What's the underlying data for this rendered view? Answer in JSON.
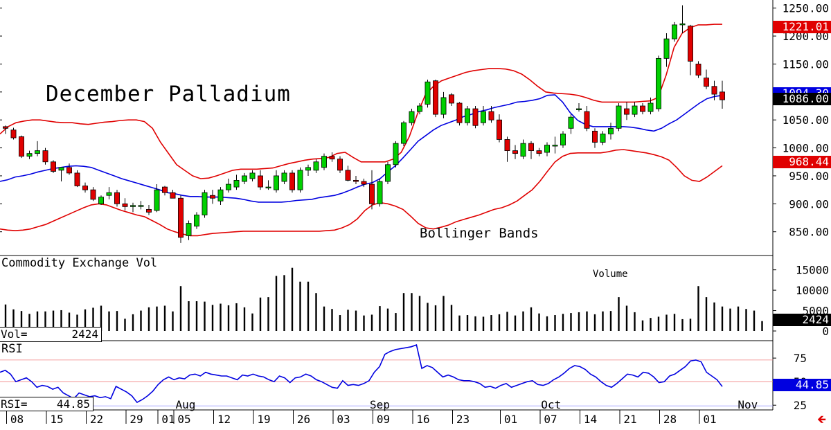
{
  "colors": {
    "up": "#00d000",
    "down": "#e00000",
    "upper_band": "#e00000",
    "lower_band": "#e00000",
    "middle_band": "#0000e0",
    "rsi_line": "#0000e0",
    "volume": "#000000",
    "last_price_box": "#000000",
    "upper_box": "#e00000",
    "lower_box": "#e00000",
    "middle_box": "#0000e0",
    "rsi_box": "#0000e0",
    "volume_box": "#000000",
    "arrow": "#e00000"
  },
  "chart_data": [
    {
      "type": "candlestick",
      "title": "December Palladium",
      "annotation": "Bollinger Bands",
      "ylim": [
        810,
        1262
      ],
      "yticks": [
        "1250.00",
        "1200.00",
        "1150.00",
        "1100.00",
        "1050.00",
        "1000.00",
        "950.00",
        "900.00",
        "850.00"
      ],
      "last_price": "1086.00",
      "upper_band_value": "1221.01",
      "middle_band_value": "1094.30",
      "lower_band_value": "968.44",
      "ohlc": [
        [
          1038,
          1040,
          1025,
          1035
        ],
        [
          1032,
          1036,
          1015,
          1018
        ],
        [
          1020,
          1022,
          982,
          985
        ],
        [
          985,
          995,
          980,
          990
        ],
        [
          990,
          1012,
          985,
          995
        ],
        [
          995,
          1000,
          970,
          975
        ],
        [
          975,
          978,
          955,
          958
        ],
        [
          960,
          965,
          940,
          965
        ],
        [
          965,
          972,
          952,
          955
        ],
        [
          955,
          960,
          930,
          932
        ],
        [
          932,
          938,
          920,
          925
        ],
        [
          925,
          930,
          905,
          908
        ],
        [
          900,
          915,
          898,
          912
        ],
        [
          915,
          930,
          908,
          920
        ],
        [
          920,
          925,
          895,
          900
        ],
        [
          900,
          910,
          888,
          895
        ],
        [
          895,
          902,
          885,
          897
        ],
        [
          897,
          905,
          890,
          897
        ],
        [
          890,
          898,
          880,
          885
        ],
        [
          888,
          935,
          885,
          925
        ],
        [
          930,
          932,
          915,
          920
        ],
        [
          920,
          925,
          910,
          910
        ],
        [
          910,
          915,
          830,
          840
        ],
        [
          843,
          870,
          835,
          865
        ],
        [
          860,
          885,
          855,
          880
        ],
        [
          880,
          925,
          875,
          920
        ],
        [
          915,
          925,
          900,
          910
        ],
        [
          905,
          930,
          898,
          925
        ],
        [
          925,
          945,
          920,
          935
        ],
        [
          930,
          952,
          925,
          942
        ],
        [
          940,
          955,
          935,
          950
        ],
        [
          945,
          960,
          940,
          955
        ],
        [
          950,
          960,
          925,
          930
        ],
        [
          930,
          942,
          925,
          930
        ],
        [
          925,
          960,
          920,
          950
        ],
        [
          940,
          960,
          935,
          955
        ],
        [
          955,
          960,
          920,
          925
        ],
        [
          925,
          965,
          920,
          960
        ],
        [
          960,
          970,
          950,
          965
        ],
        [
          960,
          980,
          955,
          975
        ],
        [
          965,
          990,
          960,
          985
        ],
        [
          985,
          992,
          975,
          980
        ],
        [
          980,
          985,
          955,
          960
        ],
        [
          960,
          968,
          940,
          942
        ],
        [
          942,
          950,
          935,
          940
        ],
        [
          940,
          945,
          930,
          935
        ],
        [
          935,
          960,
          890,
          900
        ],
        [
          900,
          945,
          895,
          940
        ],
        [
          940,
          975,
          935,
          970
        ],
        [
          970,
          1012,
          965,
          1008
        ],
        [
          1008,
          1048,
          1003,
          1045
        ],
        [
          1045,
          1070,
          1040,
          1065
        ],
        [
          1065,
          1080,
          1060,
          1075
        ],
        [
          1078,
          1122,
          1072,
          1118
        ],
        [
          1120,
          1122,
          1055,
          1060
        ],
        [
          1060,
          1100,
          1053,
          1090
        ],
        [
          1095,
          1098,
          1075,
          1080
        ],
        [
          1080,
          1082,
          1040,
          1045
        ],
        [
          1045,
          1075,
          1040,
          1070
        ],
        [
          1070,
          1075,
          1035,
          1040
        ],
        [
          1045,
          1075,
          1040,
          1065
        ],
        [
          1065,
          1075,
          1045,
          1050
        ],
        [
          1050,
          1060,
          1010,
          1015
        ],
        [
          1015,
          1020,
          975,
          995
        ],
        [
          995,
          1005,
          980,
          990
        ],
        [
          985,
          1015,
          980,
          1008
        ],
        [
          1008,
          1012,
          980,
          995
        ],
        [
          995,
          1000,
          985,
          990
        ],
        [
          992,
          1010,
          985,
          1005
        ],
        [
          1005,
          1020,
          990,
          1005
        ],
        [
          1005,
          1030,
          1000,
          1025
        ],
        [
          1035,
          1060,
          1025,
          1055
        ],
        [
          1070,
          1080,
          1065,
          1070
        ],
        [
          1065,
          1075,
          1030,
          1035
        ],
        [
          1030,
          1035,
          1000,
          1010
        ],
        [
          1010,
          1030,
          1005,
          1025
        ],
        [
          1025,
          1045,
          1015,
          1035
        ],
        [
          1035,
          1080,
          1030,
          1075
        ],
        [
          1070,
          1082,
          1050,
          1060
        ],
        [
          1060,
          1082,
          1055,
          1075
        ],
        [
          1075,
          1080,
          1060,
          1065
        ],
        [
          1065,
          1090,
          1060,
          1080
        ],
        [
          1070,
          1165,
          1065,
          1160
        ],
        [
          1160,
          1205,
          1145,
          1195
        ],
        [
          1195,
          1225,
          1190,
          1220
        ],
        [
          1220,
          1255,
          1205,
          1222
        ],
        [
          1218,
          1220,
          1130,
          1155
        ],
        [
          1150,
          1155,
          1125,
          1130
        ],
        [
          1125,
          1140,
          1105,
          1110
        ],
        [
          1110,
          1120,
          1085,
          1096
        ],
        [
          1100,
          1120,
          1070,
          1086
        ]
      ],
      "upper_band": [
        1025,
        1038,
        1045,
        1048,
        1050,
        1050,
        1048,
        1046,
        1045,
        1045,
        1043,
        1042,
        1044,
        1046,
        1047,
        1049,
        1050,
        1050,
        1047,
        1035,
        1010,
        990,
        970,
        960,
        950,
        945,
        946,
        950,
        955,
        960,
        962,
        962,
        962,
        963,
        964,
        968,
        972,
        975,
        978,
        980,
        981,
        983,
        990,
        992,
        983,
        975,
        975,
        975,
        975,
        980,
        992,
        1020,
        1060,
        1095,
        1110,
        1120,
        1125,
        1130,
        1135,
        1138,
        1140,
        1142,
        1142,
        1141,
        1138,
        1132,
        1122,
        1110,
        1100,
        1098,
        1097,
        1096,
        1094,
        1090,
        1085,
        1082,
        1082,
        1082,
        1082,
        1082,
        1083,
        1084,
        1090,
        1130,
        1180,
        1205,
        1215,
        1220,
        1220,
        1221,
        1221
      ],
      "middle_band": [
        940,
        943,
        948,
        950,
        953,
        957,
        960,
        963,
        965,
        967,
        968,
        967,
        965,
        960,
        955,
        950,
        945,
        941,
        937,
        933,
        929,
        925,
        920,
        918,
        915,
        913,
        913,
        912,
        912,
        912,
        911,
        910,
        908,
        905,
        903,
        903,
        903,
        903,
        904,
        906,
        907,
        908,
        911,
        913,
        915,
        919,
        924,
        930,
        935,
        938,
        945,
        957,
        968,
        982,
        997,
        1012,
        1022,
        1032,
        1040,
        1045,
        1050,
        1056,
        1060,
        1065,
        1068,
        1072,
        1075,
        1078,
        1082,
        1083,
        1085,
        1088,
        1094,
        1095,
        1082,
        1063,
        1049,
        1042,
        1038,
        1038,
        1038,
        1038,
        1038,
        1037,
        1035,
        1032,
        1030,
        1035,
        1043,
        1050,
        1060,
        1070,
        1080,
        1088,
        1092,
        1094
      ],
      "lower_band": [
        855,
        853,
        852,
        853,
        855,
        859,
        863,
        869,
        875,
        881,
        887,
        893,
        898,
        900,
        898,
        893,
        888,
        884,
        880,
        877,
        870,
        863,
        855,
        850,
        846,
        843,
        843,
        845,
        847,
        848,
        849,
        850,
        851,
        851,
        851,
        851,
        851,
        851,
        851,
        851,
        851,
        851,
        851,
        852,
        853,
        857,
        863,
        873,
        888,
        898,
        902,
        900,
        896,
        890,
        878,
        865,
        857,
        855,
        858,
        862,
        868,
        872,
        876,
        880,
        885,
        890,
        893,
        898,
        905,
        915,
        925,
        940,
        958,
        975,
        985,
        990,
        991,
        991,
        991,
        991,
        993,
        996,
        997,
        995,
        993,
        991,
        988,
        984,
        978,
        965,
        950,
        942,
        940,
        948,
        958,
        968
      ]
    },
    {
      "type": "bar",
      "title": "Commodity Exchange Vol",
      "annotation": "Volume",
      "ylim": [
        0,
        18000
      ],
      "yticks": [
        "15000",
        "10000",
        "5000",
        "0"
      ],
      "readout_label": "Vol=",
      "readout_value": "2424",
      "last_value": "2424",
      "values": [
        6500,
        5300,
        4900,
        4200,
        4800,
        4800,
        5000,
        5100,
        4500,
        4000,
        5300,
        5700,
        6200,
        4800,
        4900,
        3000,
        4100,
        5000,
        5800,
        6000,
        6200,
        4800,
        11000,
        7300,
        7300,
        7200,
        6400,
        6700,
        6300,
        6800,
        5800,
        4300,
        8200,
        8300,
        13500,
        13700,
        15500,
        12100,
        12100,
        9300,
        6000,
        5400,
        3900,
        5200,
        5000,
        3800,
        4000,
        6100,
        5500,
        4400,
        9300,
        9300,
        8600,
        6900,
        6300,
        8600,
        6400,
        3800,
        3900,
        3600,
        3500,
        3900,
        4100,
        4700,
        3800,
        4800,
        5800,
        4300,
        3600,
        3900,
        4200,
        4400,
        4600,
        4800,
        4100,
        4800,
        4900,
        8300,
        6200,
        4600,
        2600,
        3200,
        3500,
        4000,
        4200,
        2900,
        3000,
        11000,
        8300,
        7000,
        6000,
        5500,
        6000,
        5400,
        5000,
        2424
      ]
    },
    {
      "type": "line",
      "title": "RSI",
      "ylim": [
        20,
        92
      ],
      "yticks": [
        "75",
        "50",
        "25"
      ],
      "reference_lines": [
        73,
        50
      ],
      "readout_label": "RSI=",
      "readout_value": "44.85",
      "last_value": "44.85",
      "values": [
        60,
        62,
        58,
        50,
        52,
        54,
        50,
        44,
        46,
        45,
        42,
        44,
        38,
        35,
        32,
        38,
        36,
        34,
        35,
        33,
        34,
        32,
        45,
        42,
        39,
        35,
        28,
        31,
        35,
        40,
        47,
        52,
        55,
        52,
        54,
        53,
        57,
        58,
        56,
        60,
        58,
        57,
        56,
        56,
        54,
        52,
        57,
        56,
        58,
        56,
        55,
        52,
        50,
        56,
        54,
        49,
        54,
        55,
        58,
        56,
        52,
        50,
        47,
        44,
        43,
        51,
        46,
        47,
        46,
        48,
        51,
        60,
        66,
        79,
        82,
        84,
        85,
        86,
        87,
        89,
        64,
        67,
        65,
        60,
        55,
        57,
        55,
        52,
        51,
        51,
        50,
        48,
        44,
        45,
        43,
        46,
        48,
        44,
        46,
        48,
        50,
        51,
        47,
        46,
        48,
        52,
        55,
        59,
        64,
        67,
        66,
        63,
        58,
        55,
        50,
        46,
        44,
        48,
        53,
        58,
        57,
        55,
        60,
        59,
        55,
        49,
        50,
        56,
        58,
        62,
        66,
        72,
        73,
        71,
        60,
        56,
        52,
        44.85
      ]
    }
  ],
  "x_axis": {
    "dates": [
      "08",
      "15",
      "22",
      "29",
      "01",
      "05",
      "12",
      "19",
      "26",
      "03",
      "09",
      "16",
      "23",
      "01",
      "07",
      "14",
      "21",
      "28",
      "01"
    ],
    "months": [
      "Aug",
      "Sep",
      "Oct",
      "Nov"
    ]
  }
}
